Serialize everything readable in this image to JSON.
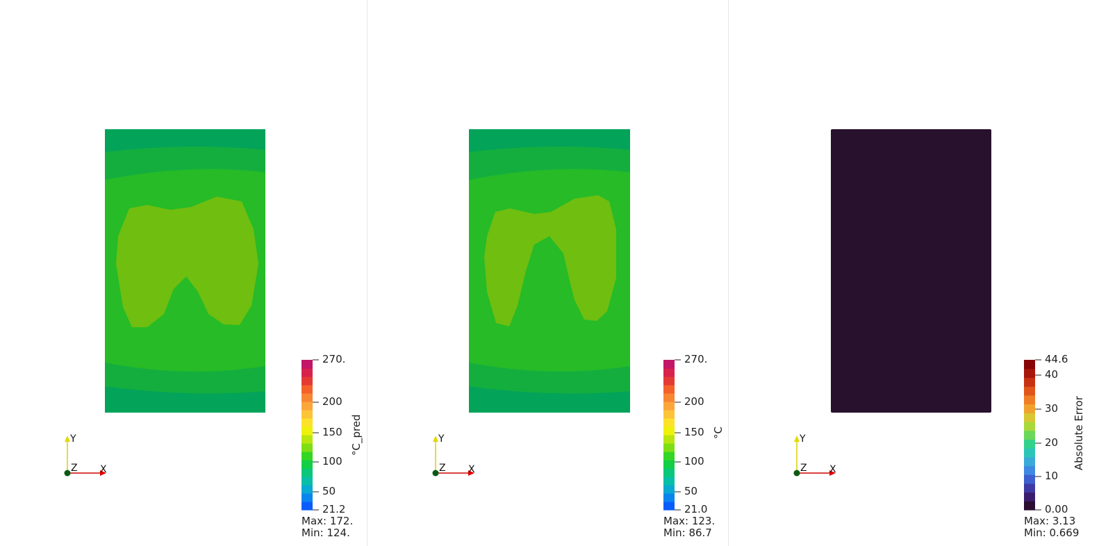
{
  "panels": [
    {
      "id": "predicted",
      "field_color": "#26bb27",
      "colorbar": {
        "title": "°C_pred",
        "ticks": [
          "270.",
          "200",
          "150",
          "100",
          "50",
          "21.2"
        ],
        "max_label": "Max: 172.",
        "min_label": "Min: 124."
      }
    },
    {
      "id": "ground-truth",
      "field_color": "#26bb27",
      "colorbar": {
        "title": "°C",
        "ticks": [
          "270.",
          "200",
          "150",
          "100",
          "50",
          "21.0"
        ],
        "max_label": "Max: 123.",
        "min_label": "Min: 86.7"
      }
    },
    {
      "id": "absolute-error",
      "field_color": "#28112d",
      "colorbar": {
        "title": "Absolute Error",
        "ticks": [
          "44.6",
          "40",
          "30",
          "20",
          "10",
          "0.00"
        ],
        "max_label": "Max: 3.13",
        "min_label": "Min: 0.669"
      }
    }
  ],
  "axes_labels": {
    "x": "X",
    "y": "Y",
    "z": "Z"
  },
  "colors": {
    "rainbow": [
      "#0a5cff",
      "#0a85ee",
      "#0aa9d2",
      "#08bfa8",
      "#0ac77a",
      "#12cf45",
      "#34d624",
      "#7ede14",
      "#b9e60f",
      "#eef20a",
      "#fde22a",
      "#fdc43a",
      "#fba63b",
      "#f98632",
      "#f4622a",
      "#e53a34",
      "#d8224c",
      "#c21668"
    ],
    "error": [
      "#2a0f33",
      "#3b1d6e",
      "#3e3aa3",
      "#3e5fcf",
      "#3f88e3",
      "#3aaad8",
      "#2ec5b9",
      "#33d28c",
      "#6bd85a",
      "#a7d93b",
      "#d8c632",
      "#f0a22d",
      "#f07e24",
      "#e0561a",
      "#c83212",
      "#a8170b",
      "#870507"
    ]
  }
}
